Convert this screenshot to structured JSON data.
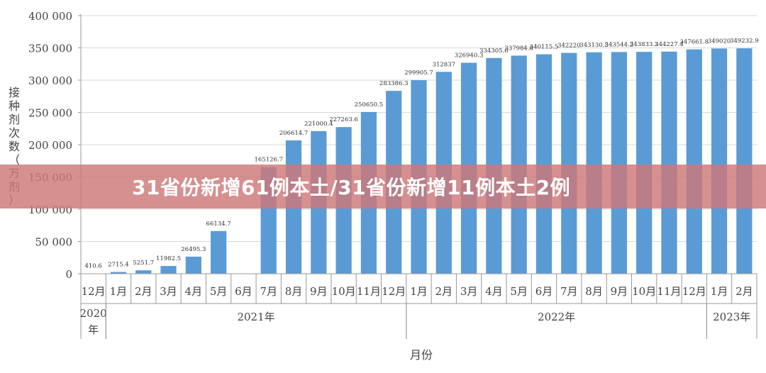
{
  "banner": {
    "title": "31省份新增61例本土/31省份新增11例本土2例",
    "color": "#cd7878"
  },
  "chart_data": {
    "type": "bar",
    "ylabel": "接种剂次数（万剂）",
    "xlabel": "月份",
    "ylim": [
      0,
      400000
    ],
    "yticks": [
      0,
      50000,
      100000,
      150000,
      200000,
      250000,
      300000,
      350000,
      400000
    ],
    "ytick_labels": [
      "0",
      "50 000",
      "100 000",
      "150 000",
      "200 000",
      "250 000",
      "300 000",
      "350 000",
      "400 000"
    ],
    "bar_color": "#5b9bd5",
    "categories": [
      "12月",
      "1月",
      "2月",
      "3月",
      "4月",
      "5月",
      "6月",
      "7月",
      "8月",
      "9月",
      "10月",
      "11月",
      "12月",
      "1月",
      "2月",
      "3月",
      "4月",
      "5月",
      "6月",
      "7月",
      "8月",
      "9月",
      "10月",
      "11月",
      "12月",
      "1月",
      "2月"
    ],
    "values": [
      410.6,
      2715.4,
      5251.7,
      11982.5,
      26495.3,
      66134.7,
      0,
      165126.7,
      206614.7,
      221000.4,
      227263.6,
      250650.5,
      283386.3,
      299905.7,
      312837,
      326940.3,
      334305.6,
      337984.8,
      340115.5,
      342220,
      343130.5,
      343544.2,
      343833.2,
      344227.4,
      347661.8,
      349020,
      349232.9
    ],
    "data_labels": [
      "410.6",
      "2715.4",
      "5251.7",
      "11982.5",
      "26495.3",
      "66134.7",
      "",
      "165126.7",
      "206614.7",
      "221000.4",
      "227263.6",
      "250650.5",
      "283386.3",
      "299905.7",
      "312837",
      "326940.3",
      "334305.6",
      "337984.8",
      "340115.5",
      "342220",
      "343130.5",
      "343544.2",
      "343833.2",
      "344227.4",
      "347661.8",
      "349020",
      "349232.9"
    ],
    "years": [
      {
        "label": "2020\n年",
        "start": 0,
        "end": 0
      },
      {
        "label": "2021年",
        "start": 1,
        "end": 12
      },
      {
        "label": "2022年",
        "start": 13,
        "end": 24
      },
      {
        "label": "2023年",
        "start": 25,
        "end": 26
      }
    ],
    "grid": "horizontal"
  }
}
